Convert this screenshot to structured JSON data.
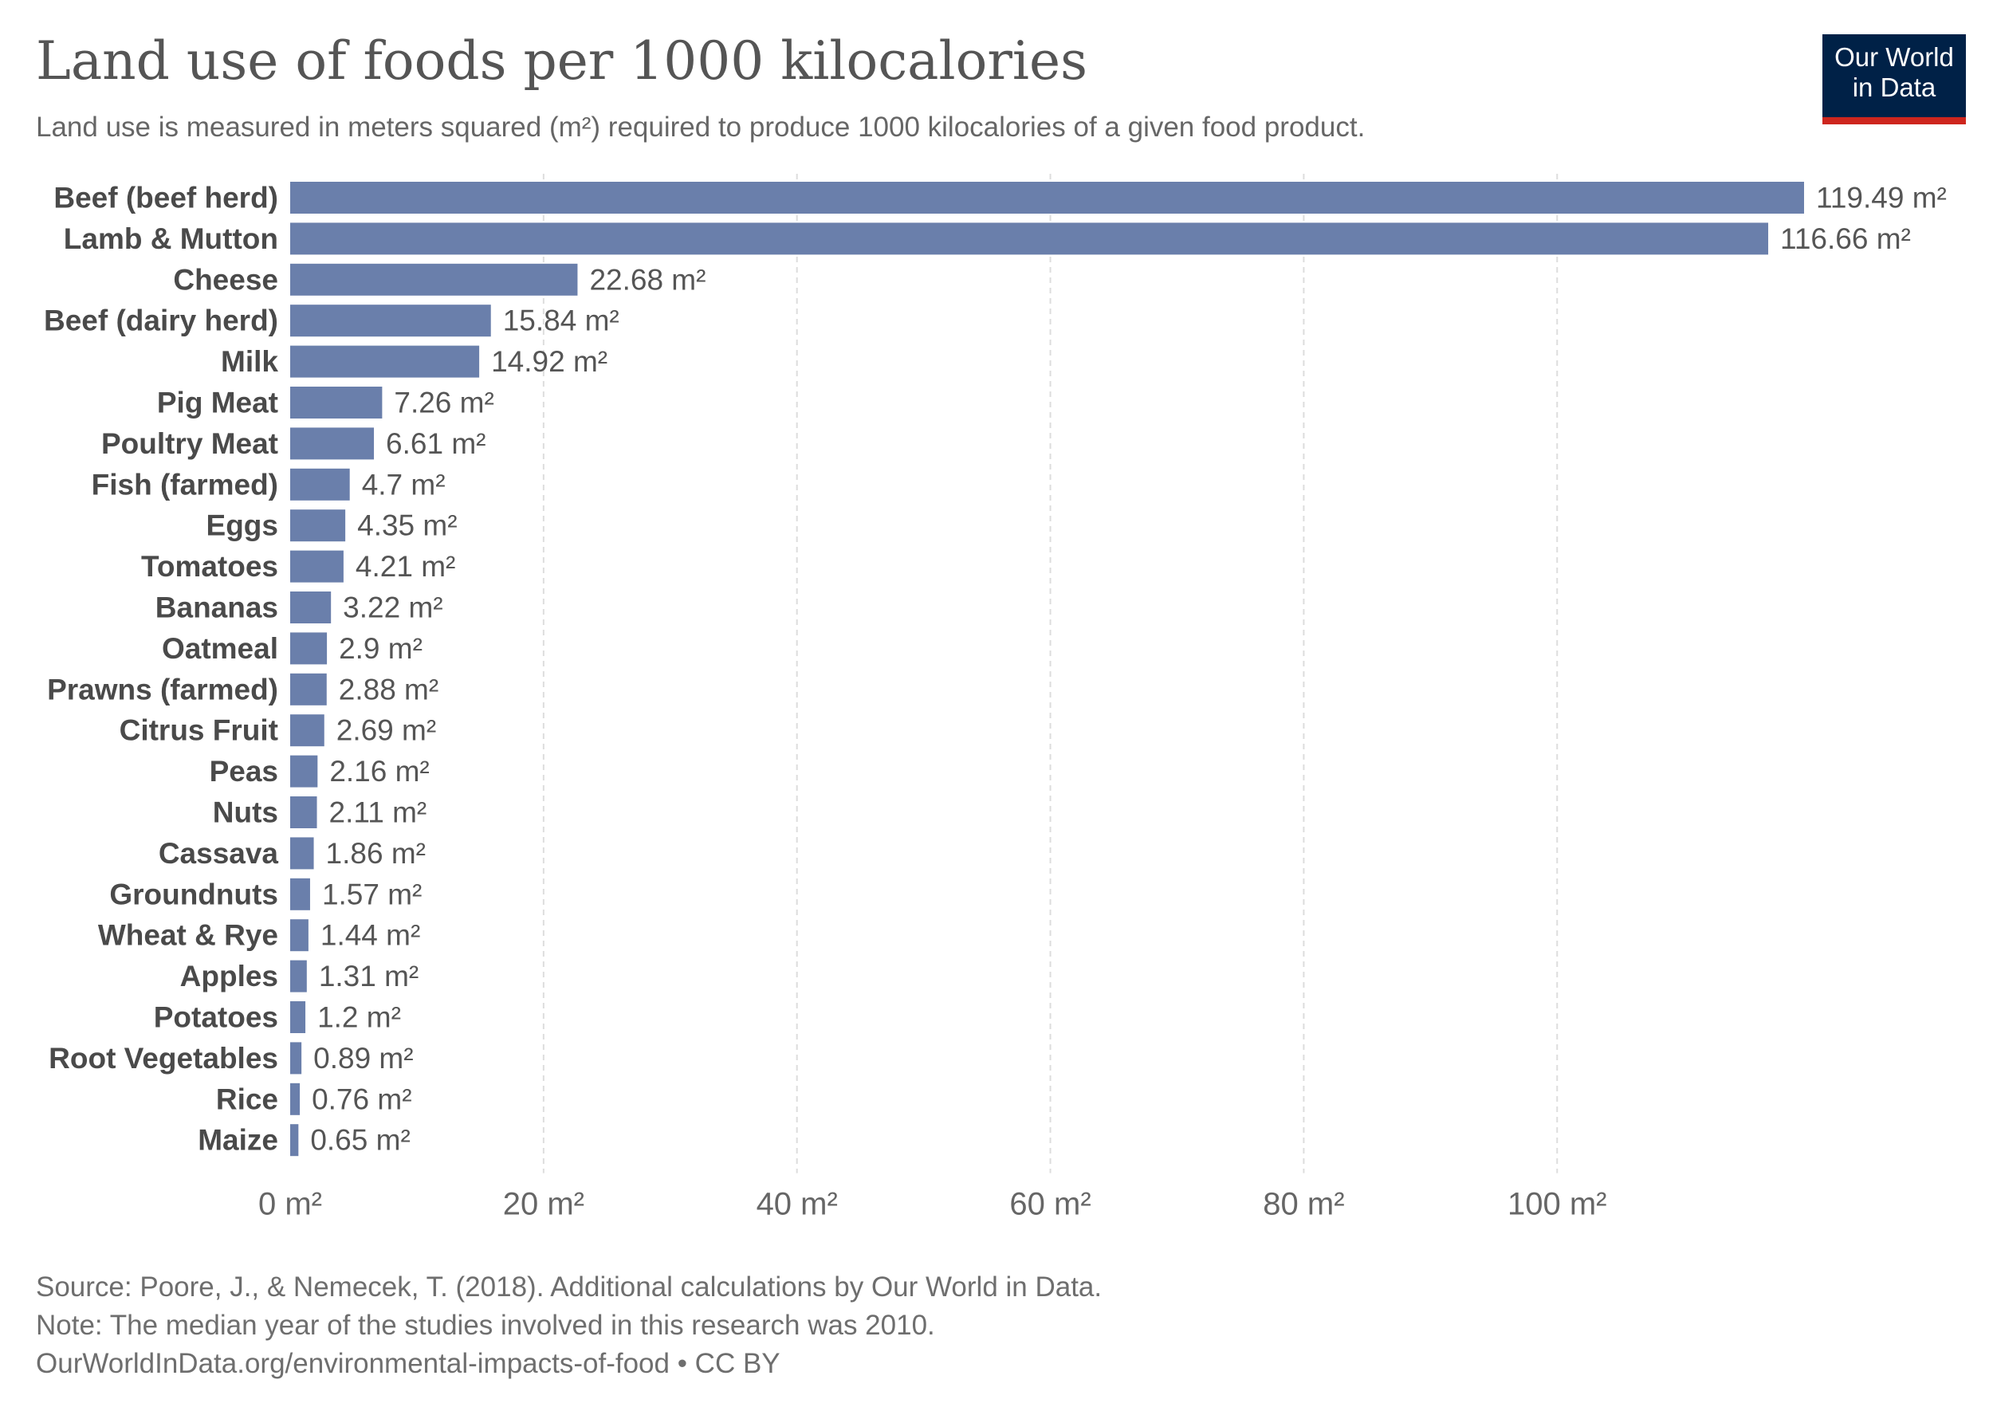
{
  "header": {
    "title": "Land use of foods per 1000 kilocalories",
    "subtitle": "Land use is measured in meters squared (m²) required to produce 1000 kilocalories of a given food product."
  },
  "logo": {
    "line1": "Our World",
    "line2": "in Data"
  },
  "footer": {
    "source": "Source: Poore, J., & Nemecek, T. (2018). Additional calculations by Our World in Data.",
    "note": "Note: The median year of the studies involved in this research was 2010.",
    "url": "OurWorldInData.org/environmental-impacts-of-food • CC BY"
  },
  "colors": {
    "bar": "#6a7fab",
    "grid": "#dddddd",
    "label": "#4a4a4a",
    "value": "#555555",
    "logo_bg": "#002147",
    "logo_accent": "#ce261e"
  },
  "chart_data": {
    "type": "bar",
    "orientation": "horizontal",
    "unit": "m²",
    "categories": [
      "Beef (beef herd)",
      "Lamb & Mutton",
      "Cheese",
      "Beef (dairy herd)",
      "Milk",
      "Pig Meat",
      "Poultry Meat",
      "Fish (farmed)",
      "Eggs",
      "Tomatoes",
      "Bananas",
      "Oatmeal",
      "Prawns (farmed)",
      "Citrus Fruit",
      "Peas",
      "Nuts",
      "Cassava",
      "Groundnuts",
      "Wheat & Rye",
      "Apples",
      "Potatoes",
      "Root Vegetables",
      "Rice",
      "Maize"
    ],
    "values": [
      119.49,
      116.66,
      22.68,
      15.84,
      14.92,
      7.26,
      6.61,
      4.7,
      4.35,
      4.21,
      3.22,
      2.9,
      2.88,
      2.69,
      2.16,
      2.11,
      1.86,
      1.57,
      1.44,
      1.31,
      1.2,
      0.89,
      0.76,
      0.65
    ],
    "value_labels": [
      "119.49 m²",
      "116.66 m²",
      "22.68 m²",
      "15.84 m²",
      "14.92 m²",
      "7.26 m²",
      "6.61 m²",
      "4.7 m²",
      "4.35 m²",
      "4.21 m²",
      "3.22 m²",
      "2.9 m²",
      "2.88 m²",
      "2.69 m²",
      "2.16 m²",
      "2.11 m²",
      "1.86 m²",
      "1.57 m²",
      "1.44 m²",
      "1.31 m²",
      "1.2 m²",
      "0.89 m²",
      "0.76 m²",
      "0.65 m²"
    ],
    "x_ticks": [
      0,
      20,
      40,
      60,
      80,
      100
    ],
    "x_tick_labels": [
      "0 m²",
      "20 m²",
      "40 m²",
      "60 m²",
      "80 m²",
      "100 m²"
    ],
    "xlim": [
      0,
      119.49
    ],
    "grid": true,
    "legend": "none"
  }
}
